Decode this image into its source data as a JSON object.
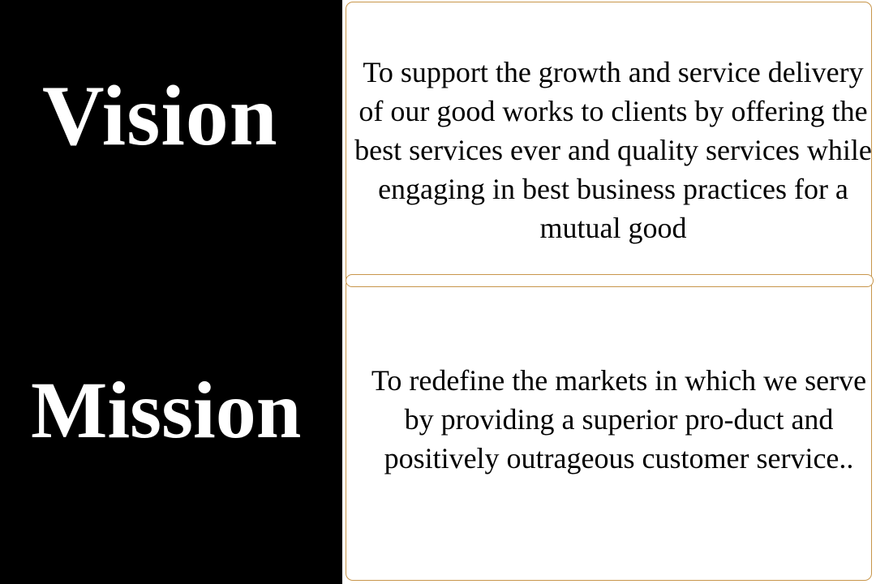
{
  "vision": {
    "heading": "Vision",
    "text": "To support the growth and service delivery of our good works to clients by offering the best services ever and quality services while engaging in best business practices for a mutual good"
  },
  "mission": {
    "heading": "Mission",
    "text": "To redefine the markets in which we serve by providing a superior pro-duct and positively outrageous customer service.."
  },
  "colors": {
    "panel_background": "#000000",
    "heading_text": "#ffffff",
    "card_border": "#c8964b",
    "body_text": "#000000"
  }
}
